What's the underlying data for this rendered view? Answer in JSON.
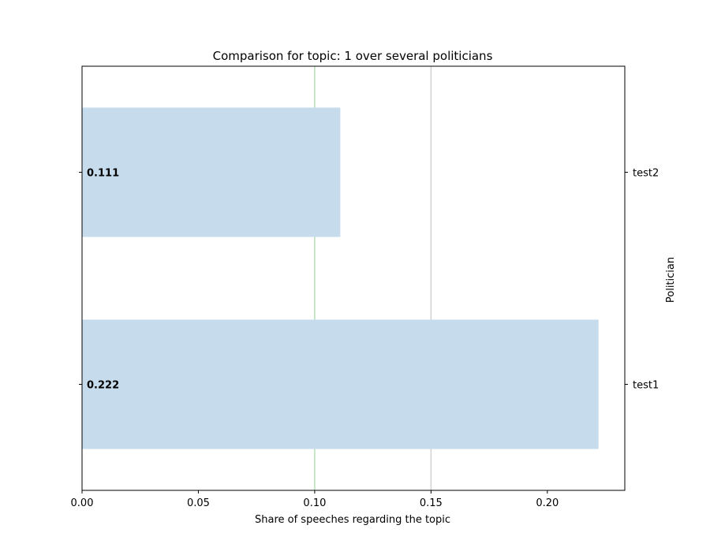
{
  "chart_data": {
    "type": "bar",
    "orientation": "horizontal",
    "title": "Comparison for topic: 1 over several politicians",
    "xlabel": "Share of speeches regarding the topic",
    "ylabel": "Politician",
    "categories": [
      "test2",
      "test1"
    ],
    "values": [
      0.111,
      0.222
    ],
    "value_labels": [
      "0.111",
      "0.222"
    ],
    "xlim": [
      0,
      0.2333
    ],
    "xticks": [
      0.0,
      0.05,
      0.1,
      0.15,
      0.2
    ],
    "xtick_labels": [
      "0.00",
      "0.05",
      "0.10",
      "0.15",
      "0.20"
    ],
    "reference_lines": [
      {
        "x": 0.1,
        "color": "#2ca02c",
        "opacity": 0.35
      },
      {
        "x": 0.15,
        "color": "#7f7f7f",
        "opacity": 0.35
      }
    ],
    "bar_color": "#c6dbec",
    "ylabel_side": "right",
    "grid": false
  }
}
